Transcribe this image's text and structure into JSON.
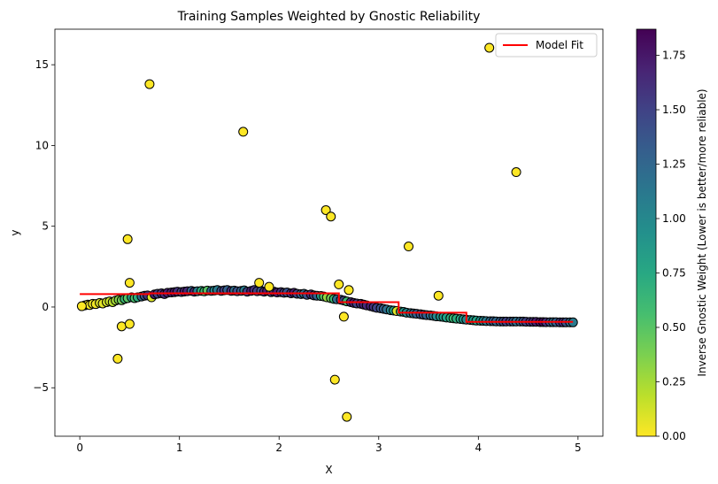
{
  "chart_data": {
    "type": "scatter",
    "title": "Training Samples Weighted by Gnostic Reliability",
    "xlabel": "X",
    "ylabel": "y",
    "xlim": [
      -0.25,
      5.25
    ],
    "ylim": [
      -8,
      17.2
    ],
    "xticks": [
      0,
      1,
      2,
      3,
      4,
      5
    ],
    "yticks": [
      -5,
      0,
      5,
      10,
      15
    ],
    "colorbar": {
      "label": "Inverse Gnostic Weight (Lower is better/more reliable)",
      "range": [
        0,
        1.87
      ],
      "ticks": [
        0.0,
        0.25,
        0.5,
        0.75,
        1.0,
        1.25,
        1.5,
        1.75
      ],
      "tick_labels": [
        "0.00",
        "0.25",
        "0.50",
        "0.75",
        "1.00",
        "1.25",
        "1.50",
        "1.75"
      ],
      "colormap": "viridis_r"
    },
    "legend": {
      "position": "top-right",
      "entries": [
        {
          "name": "Model Fit",
          "color": "#ff0000"
        }
      ]
    },
    "colors": {
      "line": "#ff0000",
      "marker_edge": "#000000"
    },
    "series": [
      {
        "name": "Training Samples",
        "points": [
          [
            0.02,
            0.05,
            0.0
          ],
          [
            0.05,
            0.1,
            0.05
          ],
          [
            0.08,
            0.15,
            0.02
          ],
          [
            0.1,
            0.12,
            0.03
          ],
          [
            0.13,
            0.2,
            0.05
          ],
          [
            0.16,
            0.18,
            0.04
          ],
          [
            0.2,
            0.25,
            0.1
          ],
          [
            0.23,
            0.22,
            0.08
          ],
          [
            0.27,
            0.3,
            0.12
          ],
          [
            0.3,
            0.35,
            0.15
          ],
          [
            0.33,
            0.3,
            0.2
          ],
          [
            0.36,
            0.4,
            0.25
          ],
          [
            0.39,
            0.45,
            0.35
          ],
          [
            0.42,
            0.42,
            0.4
          ],
          [
            0.45,
            0.5,
            0.6
          ],
          [
            0.48,
            0.55,
            0.5
          ],
          [
            0.52,
            0.6,
            0.8
          ],
          [
            0.55,
            0.55,
            0.55
          ],
          [
            0.58,
            0.6,
            0.7
          ],
          [
            0.62,
            0.65,
            1.2
          ],
          [
            0.65,
            0.7,
            1.4
          ],
          [
            0.68,
            0.72,
            1.6
          ],
          [
            0.72,
            0.6,
            0.1
          ],
          [
            0.75,
            0.78,
            1.7
          ],
          [
            0.78,
            0.82,
            1.5
          ],
          [
            0.82,
            0.85,
            1.6
          ],
          [
            0.85,
            0.8,
            1.65
          ],
          [
            0.88,
            0.88,
            1.7
          ],
          [
            0.92,
            0.9,
            1.7
          ],
          [
            0.95,
            0.92,
            1.75
          ],
          [
            0.98,
            0.95,
            1.6
          ],
          [
            1.02,
            0.93,
            1.5
          ],
          [
            1.05,
            0.96,
            1.7
          ],
          [
            1.08,
            0.98,
            1.65
          ],
          [
            1.12,
            1.0,
            1.3
          ],
          [
            1.15,
            0.95,
            1.6
          ],
          [
            1.18,
            0.98,
            1.1
          ],
          [
            1.22,
            1.0,
            0.7
          ],
          [
            1.25,
            0.97,
            0.6
          ],
          [
            1.28,
            1.02,
            0.5
          ],
          [
            1.32,
            1.0,
            1.2
          ],
          [
            1.35,
            1.02,
            1.0
          ],
          [
            1.38,
            1.05,
            1.1
          ],
          [
            1.42,
            1.0,
            1.4
          ],
          [
            1.45,
            1.03,
            1.5
          ],
          [
            1.48,
            1.05,
            1.3
          ],
          [
            1.52,
            1.0,
            1.6
          ],
          [
            1.55,
            1.02,
            1.2
          ],
          [
            1.58,
            0.98,
            1.4
          ],
          [
            1.62,
            1.0,
            1.3
          ],
          [
            1.65,
            1.03,
            1.1
          ],
          [
            1.68,
            0.95,
            1.5
          ],
          [
            1.72,
            1.0,
            1.7
          ],
          [
            1.75,
            1.05,
            1.6
          ],
          [
            1.78,
            0.98,
            1.5
          ],
          [
            1.82,
            1.0,
            1.4
          ],
          [
            1.85,
            0.95,
            1.6
          ],
          [
            1.88,
            1.0,
            1.7
          ],
          [
            1.92,
            0.92,
            1.5
          ],
          [
            1.95,
            0.95,
            1.6
          ],
          [
            1.98,
            0.9,
            1.7
          ],
          [
            2.02,
            0.92,
            1.6
          ],
          [
            2.05,
            0.88,
            1.5
          ],
          [
            2.08,
            0.9,
            1.4
          ],
          [
            2.12,
            0.85,
            1.6
          ],
          [
            2.15,
            0.88,
            1.7
          ],
          [
            2.18,
            0.82,
            1.5
          ],
          [
            2.22,
            0.8,
            1.3
          ],
          [
            2.25,
            0.82,
            1.2
          ],
          [
            2.28,
            0.75,
            1.4
          ],
          [
            2.32,
            0.78,
            1.6
          ],
          [
            2.35,
            0.72,
            1.5
          ],
          [
            2.38,
            0.7,
            1.3
          ],
          [
            2.42,
            0.68,
            0.8
          ],
          [
            2.45,
            0.65,
            0.5
          ],
          [
            2.48,
            0.6,
            0.3
          ],
          [
            2.52,
            0.55,
            0.4
          ],
          [
            2.55,
            0.5,
            0.6
          ],
          [
            2.58,
            0.48,
            1.2
          ],
          [
            2.62,
            0.45,
            1.4
          ],
          [
            2.65,
            0.4,
            1.5
          ],
          [
            2.68,
            0.35,
            0.6
          ],
          [
            2.72,
            0.3,
            1.6
          ],
          [
            2.75,
            0.25,
            1.7
          ],
          [
            2.78,
            0.22,
            1.5
          ],
          [
            2.82,
            0.2,
            1.6
          ],
          [
            2.85,
            0.15,
            1.7
          ],
          [
            2.88,
            0.1,
            1.65
          ],
          [
            2.92,
            0.05,
            1.7
          ],
          [
            2.95,
            0.0,
            1.6
          ],
          [
            2.98,
            -0.05,
            1.5
          ],
          [
            3.02,
            -0.08,
            1.4
          ],
          [
            3.05,
            -0.12,
            1.3
          ],
          [
            3.08,
            -0.15,
            1.2
          ],
          [
            3.12,
            -0.2,
            1.0
          ],
          [
            3.15,
            -0.22,
            0.8
          ],
          [
            3.18,
            -0.25,
            0.1
          ],
          [
            3.22,
            -0.28,
            0.6
          ],
          [
            3.25,
            -0.3,
            0.9
          ],
          [
            3.28,
            -0.35,
            1.0
          ],
          [
            3.32,
            -0.38,
            1.1
          ],
          [
            3.35,
            -0.4,
            1.2
          ],
          [
            3.38,
            -0.42,
            1.3
          ],
          [
            3.42,
            -0.45,
            1.35
          ],
          [
            3.45,
            -0.48,
            1.4
          ],
          [
            3.48,
            -0.5,
            1.3
          ],
          [
            3.52,
            -0.52,
            1.2
          ],
          [
            3.55,
            -0.55,
            1.1
          ],
          [
            3.58,
            -0.58,
            1.0
          ],
          [
            3.62,
            -0.6,
            0.9
          ],
          [
            3.65,
            -0.62,
            0.85
          ],
          [
            3.68,
            -0.65,
            0.8
          ],
          [
            3.72,
            -0.68,
            0.7
          ],
          [
            3.75,
            -0.7,
            0.6
          ],
          [
            3.78,
            -0.72,
            0.7
          ],
          [
            3.82,
            -0.74,
            0.75
          ],
          [
            3.85,
            -0.76,
            0.9
          ],
          [
            3.88,
            -0.78,
            1.0
          ],
          [
            3.92,
            -0.8,
            0.95
          ],
          [
            3.95,
            -0.82,
            0.85
          ],
          [
            3.98,
            -0.84,
            0.8
          ],
          [
            4.02,
            -0.85,
            0.9
          ],
          [
            4.05,
            -0.86,
            1.0
          ],
          [
            4.08,
            -0.87,
            1.1
          ],
          [
            4.12,
            -0.88,
            1.2
          ],
          [
            4.15,
            -0.88,
            1.3
          ],
          [
            4.18,
            -0.89,
            1.25
          ],
          [
            4.22,
            -0.9,
            1.3
          ],
          [
            4.25,
            -0.9,
            1.4
          ],
          [
            4.28,
            -0.9,
            1.5
          ],
          [
            4.32,
            -0.9,
            1.45
          ],
          [
            4.35,
            -0.9,
            1.3
          ],
          [
            4.38,
            -0.9,
            1.2
          ],
          [
            4.42,
            -0.9,
            1.25
          ],
          [
            4.45,
            -0.9,
            1.4
          ],
          [
            4.48,
            -0.91,
            1.5
          ],
          [
            4.52,
            -0.92,
            1.55
          ],
          [
            4.55,
            -0.92,
            1.6
          ],
          [
            4.58,
            -0.92,
            1.7
          ],
          [
            4.62,
            -0.93,
            1.75
          ],
          [
            4.65,
            -0.93,
            1.8
          ],
          [
            4.68,
            -0.94,
            1.6
          ],
          [
            4.72,
            -0.94,
            1.4
          ],
          [
            4.75,
            -0.94,
            1.2
          ],
          [
            4.78,
            -0.94,
            1.3
          ],
          [
            4.82,
            -0.95,
            1.5
          ],
          [
            4.85,
            -0.95,
            1.6
          ],
          [
            4.88,
            -0.95,
            1.4
          ],
          [
            4.92,
            -0.95,
            1.2
          ],
          [
            4.95,
            -0.95,
            1.1
          ],
          [
            0.7,
            13.8,
            0.0
          ],
          [
            1.64,
            10.85,
            0.0
          ],
          [
            4.11,
            16.05,
            0.0
          ],
          [
            4.38,
            8.35,
            0.0
          ],
          [
            2.47,
            6.0,
            0.0
          ],
          [
            2.52,
            5.6,
            0.0
          ],
          [
            3.3,
            3.75,
            0.0
          ],
          [
            0.48,
            4.2,
            0.0
          ],
          [
            0.5,
            1.5,
            0.0
          ],
          [
            1.8,
            1.5,
            0.0
          ],
          [
            1.9,
            1.25,
            0.0
          ],
          [
            2.6,
            1.4,
            0.0
          ],
          [
            2.7,
            1.05,
            0.0
          ],
          [
            3.6,
            0.7,
            0.0
          ],
          [
            2.65,
            -0.6,
            0.0
          ],
          [
            0.42,
            -1.2,
            0.0
          ],
          [
            0.5,
            -1.05,
            0.0
          ],
          [
            0.38,
            -3.2,
            0.0
          ],
          [
            2.56,
            -4.5,
            0.0
          ],
          [
            2.68,
            -6.8,
            0.0
          ]
        ]
      }
    ],
    "model_fit": {
      "name": "Model Fit",
      "x": [
        0.0,
        0.7,
        0.7,
        2.6,
        2.6,
        3.2,
        3.2,
        3.88,
        3.88,
        4.95
      ],
      "y": [
        0.8,
        0.8,
        0.85,
        0.85,
        0.3,
        0.3,
        -0.35,
        -0.35,
        -0.92,
        -0.92
      ]
    }
  }
}
